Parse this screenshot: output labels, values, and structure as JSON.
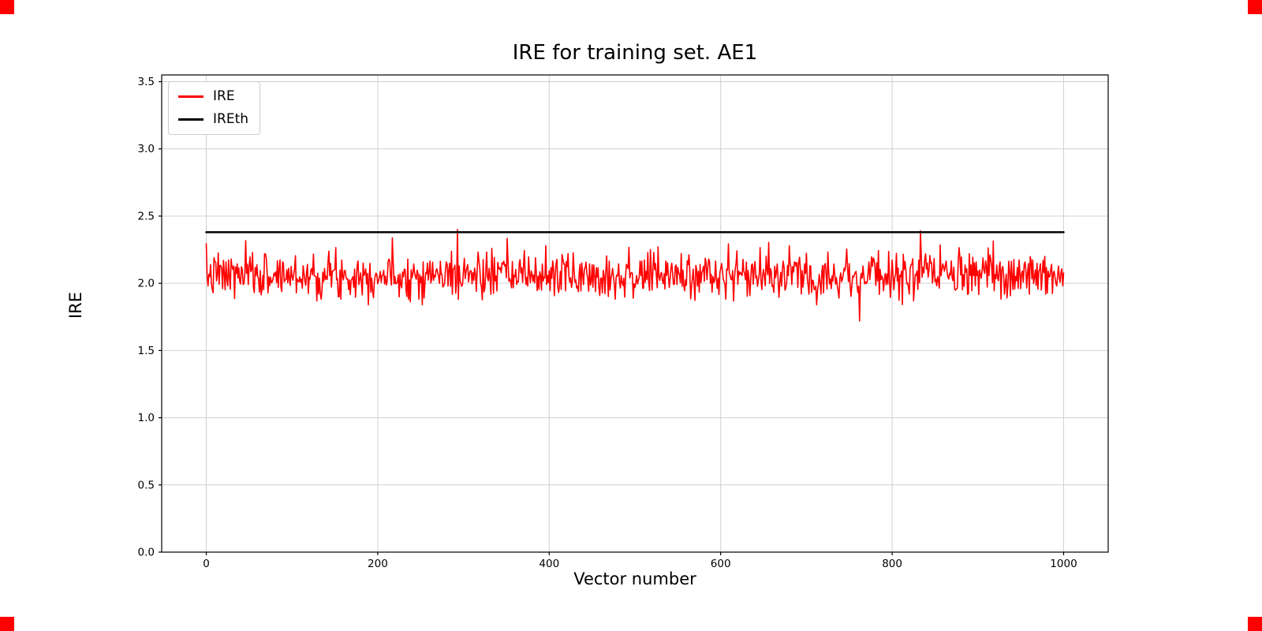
{
  "page": {
    "background": "#ffffff"
  },
  "markers": {
    "color": "#ff0000"
  },
  "chart": {
    "title": "IRE for training set. AE1",
    "xlabel": "Vector number",
    "ylabel": "IRE",
    "legend": [
      {
        "label": "IRE",
        "color": "#ff0000"
      },
      {
        "label": "IREth",
        "color": "#000000"
      }
    ]
  },
  "chart_data": {
    "type": "line",
    "title": "IRE for training set. AE1",
    "xlabel": "Vector number",
    "ylabel": "IRE",
    "xlim": [
      -52,
      1052
    ],
    "ylim": [
      0,
      3.55
    ],
    "x_ticks": [
      0,
      200,
      400,
      600,
      800,
      1000
    ],
    "y_ticks": [
      0.0,
      0.5,
      1.0,
      1.5,
      2.0,
      2.5,
      3.0,
      3.5
    ],
    "grid": true,
    "grid_color": "#d0d0d0",
    "legend_position": "upper left",
    "series": [
      {
        "name": "IRE",
        "color": "#ff0000",
        "line_width": 1.6,
        "type": "noisy",
        "n_points": 1001,
        "x_start": 0,
        "x_end": 1000,
        "mean": 2.06,
        "std": 0.085,
        "clip_min": 1.84,
        "clip_max": 2.38,
        "seed": 7,
        "anomalies": [
          {
            "x": 293,
            "value": 2.4
          },
          {
            "x": 762,
            "value": 1.72
          },
          {
            "x": 833,
            "value": 2.39
          }
        ]
      },
      {
        "name": "IREth",
        "color": "#000000",
        "line_width": 2.5,
        "type": "constant",
        "value": 2.38,
        "x_start": 0,
        "x_end": 1000
      }
    ]
  }
}
